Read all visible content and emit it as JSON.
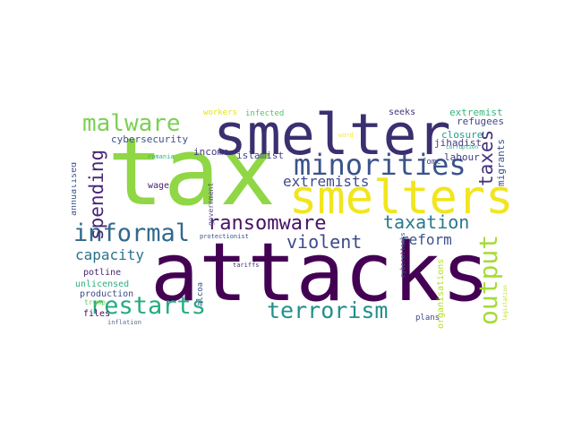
{
  "wordcloud": {
    "words": [
      {
        "text": "tax",
        "color": "#8fd744"
      },
      {
        "text": "attacks",
        "color": "#440154"
      },
      {
        "text": "smelter",
        "color": "#3b2f70"
      },
      {
        "text": "smelters",
        "color": "#f1e51d"
      },
      {
        "text": "minorities",
        "color": "#3a538b"
      },
      {
        "text": "malware",
        "color": "#7ad151"
      },
      {
        "text": "informal",
        "color": "#31688e"
      },
      {
        "text": "ransomware",
        "color": "#471365"
      },
      {
        "text": "restarts",
        "color": "#25ab82"
      },
      {
        "text": "terrorism",
        "color": "#21908d"
      },
      {
        "text": "output",
        "color": "#a5db36"
      },
      {
        "text": "taxation",
        "color": "#2a788e"
      },
      {
        "text": "violent",
        "color": "#3e4a89"
      },
      {
        "text": "reform",
        "color": "#3b528b"
      },
      {
        "text": "extremists",
        "color": "#3e4c8a"
      },
      {
        "text": "spending",
        "color": "#482576"
      },
      {
        "text": "capacity",
        "color": "#2c718e"
      },
      {
        "text": "taxes",
        "color": "#46327e"
      },
      {
        "text": "cybersecurity",
        "color": "#3b528b"
      },
      {
        "text": "income",
        "color": "#443983"
      },
      {
        "text": "islamist",
        "color": "#404688"
      },
      {
        "text": "extremist",
        "color": "#35b779"
      },
      {
        "text": "refugees",
        "color": "#3e4989"
      },
      {
        "text": "closure",
        "color": "#1f9e89"
      },
      {
        "text": "jihadist",
        "color": "#443a83"
      },
      {
        "text": "migrants",
        "color": "#3b528b"
      },
      {
        "text": "labour",
        "color": "#424186"
      },
      {
        "text": "fomc",
        "color": "#3f4788"
      },
      {
        "text": "seeks",
        "color": "#46337f"
      },
      {
        "text": "workers",
        "color": "#e2e418"
      },
      {
        "text": "infected",
        "color": "#52c569"
      },
      {
        "text": "word",
        "color": "#fde725"
      },
      {
        "text": "romania",
        "color": "#2db27d"
      },
      {
        "text": "wage",
        "color": "#482173"
      },
      {
        "text": "annualised",
        "color": "#3b528b"
      },
      {
        "text": "government",
        "color": "#5e4e8a"
      },
      {
        "text": "protectionist",
        "color": "#3b528b"
      },
      {
        "text": "potline",
        "color": "#482374"
      },
      {
        "text": "unlicensed",
        "color": "#29af7f"
      },
      {
        "text": "production",
        "color": "#3e4a89"
      },
      {
        "text": "trump",
        "color": "#6ece58"
      },
      {
        "text": "files",
        "color": "#46085c"
      },
      {
        "text": "inflation",
        "color": "#5b6b8a"
      },
      {
        "text": "alcoa",
        "color": "#3b528b"
      },
      {
        "text": "tariffs",
        "color": "#472c7a"
      },
      {
        "text": "cyberattacks",
        "color": "#3b528b"
      },
      {
        "text": "organisations",
        "color": "#b5de2b"
      },
      {
        "text": "plans",
        "color": "#3e4a89"
      },
      {
        "text": "corruption",
        "color": "#21a685"
      },
      {
        "text": "legislation",
        "color": "#bddf26"
      }
    ]
  }
}
